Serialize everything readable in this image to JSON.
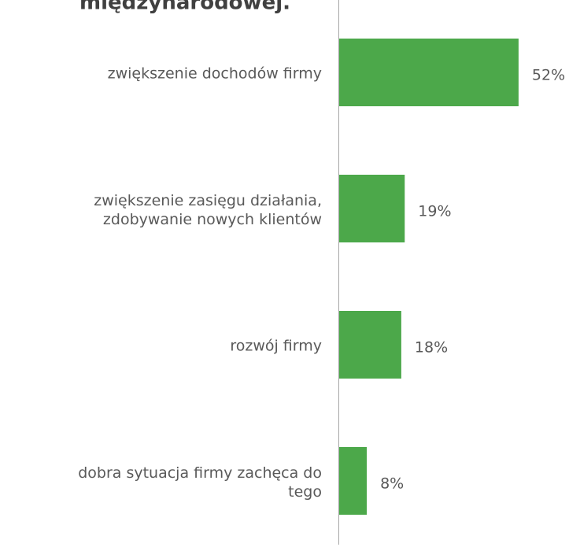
{
  "chart_data": {
    "type": "barh",
    "title": "międzynarodowej.",
    "categories": [
      "zwiększenie dochodów firmy",
      "zwiększenie zasięgu działania,\nzdobywanie nowych klientów",
      "rozwój firmy",
      "dobra sytuacja firmy zachęca do\ntego"
    ],
    "values": [
      52,
      19,
      18,
      8
    ],
    "value_labels": [
      "52%",
      "19%",
      "18%",
      "8%"
    ],
    "color": "#4ca84a",
    "xlim": [
      0,
      60
    ]
  }
}
